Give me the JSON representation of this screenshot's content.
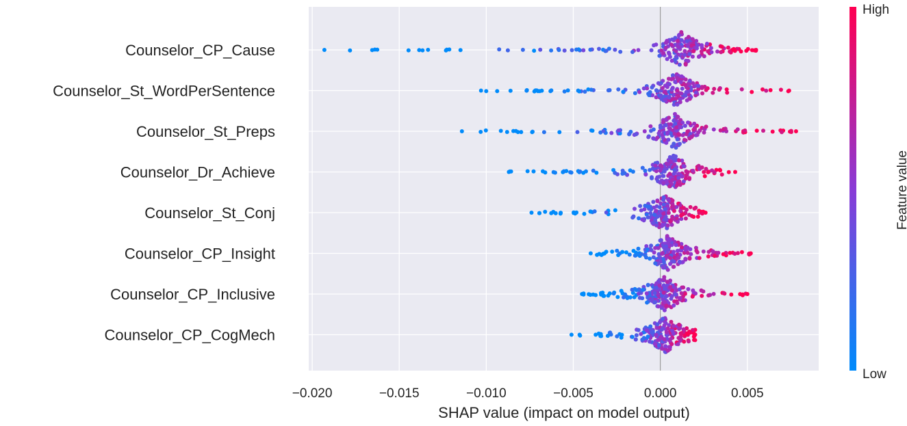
{
  "chart_data": {
    "type": "beeswarm",
    "title": "",
    "xlabel": "SHAP value (impact on model output)",
    "ylabel": "",
    "xlim": [
      -0.0202,
      0.0091
    ],
    "xticks": [
      -0.02,
      -0.015,
      -0.01,
      -0.005,
      0.0,
      0.005
    ],
    "xtick_labels": [
      "−0.020",
      "−0.015",
      "−0.010",
      "−0.005",
      "0.000",
      "0.005"
    ],
    "grid": true,
    "features": [
      {
        "name": "Counselor_CP_Cause",
        "min": -0.0193,
        "max": 0.0055,
        "peak": 0.0012
      },
      {
        "name": "Counselor_St_WordPerSentence",
        "min": -0.0103,
        "max": 0.0074,
        "peak": 0.0009
      },
      {
        "name": "Counselor_St_Preps",
        "min": -0.0114,
        "max": 0.0078,
        "peak": 0.0008
      },
      {
        "name": "Counselor_Dr_Achieve",
        "min": -0.0087,
        "max": 0.0043,
        "peak": 0.0007
      },
      {
        "name": "Counselor_St_Conj",
        "min": -0.0074,
        "max": 0.0026,
        "peak": 0.0002
      },
      {
        "name": "Counselor_CP_Insight",
        "min": -0.004,
        "max": 0.0052,
        "peak": 0.0004
      },
      {
        "name": "Counselor_CP_Inclusive",
        "min": -0.0045,
        "max": 0.005,
        "peak": 0.0002
      },
      {
        "name": "Counselor_CP_CogMech",
        "min": -0.0051,
        "max": 0.002,
        "peak": 0.0003
      }
    ],
    "colorbar": {
      "high_label": "High",
      "low_label": "Low",
      "title": "Feature value",
      "high_color": "#ff0052",
      "mid_color": "#8a3bd6",
      "low_color": "#008bfb"
    }
  }
}
